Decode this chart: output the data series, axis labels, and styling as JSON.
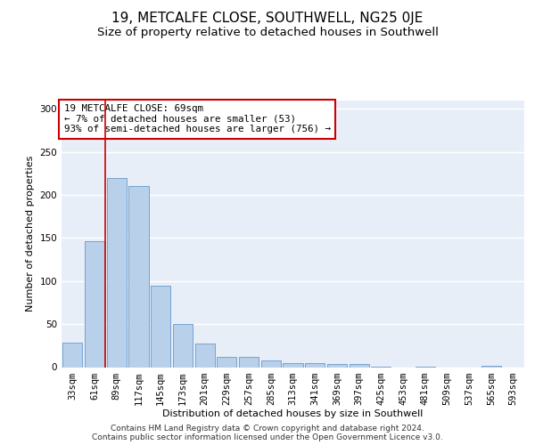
{
  "title": "19, METCALFE CLOSE, SOUTHWELL, NG25 0JE",
  "subtitle": "Size of property relative to detached houses in Southwell",
  "xlabel": "Distribution of detached houses by size in Southwell",
  "ylabel": "Number of detached properties",
  "categories": [
    "33sqm",
    "61sqm",
    "89sqm",
    "117sqm",
    "145sqm",
    "173sqm",
    "201sqm",
    "229sqm",
    "257sqm",
    "285sqm",
    "313sqm",
    "341sqm",
    "369sqm",
    "397sqm",
    "425sqm",
    "453sqm",
    "481sqm",
    "509sqm",
    "537sqm",
    "565sqm",
    "593sqm"
  ],
  "bar_heights": [
    28,
    146,
    220,
    210,
    95,
    50,
    27,
    12,
    12,
    8,
    5,
    5,
    4,
    4,
    1,
    0,
    1,
    0,
    0,
    2,
    0
  ],
  "bar_color": "#b8d0ea",
  "bar_edge_color": "#6699cc",
  "vline_x": 1.5,
  "vline_color": "#cc0000",
  "annotation_text": "19 METCALFE CLOSE: 69sqm\n← 7% of detached houses are smaller (53)\n93% of semi-detached houses are larger (756) →",
  "annotation_box_color": "#ffffff",
  "annotation_box_edge": "#cc0000",
  "ylim": [
    0,
    310
  ],
  "yticks": [
    0,
    50,
    100,
    150,
    200,
    250,
    300
  ],
  "bg_color": "#e8eef8",
  "footer_line1": "Contains HM Land Registry data © Crown copyright and database right 2024.",
  "footer_line2": "Contains public sector information licensed under the Open Government Licence v3.0.",
  "title_fontsize": 11,
  "subtitle_fontsize": 9.5,
  "axis_label_fontsize": 8,
  "tick_fontsize": 7.5,
  "footer_fontsize": 6.5
}
